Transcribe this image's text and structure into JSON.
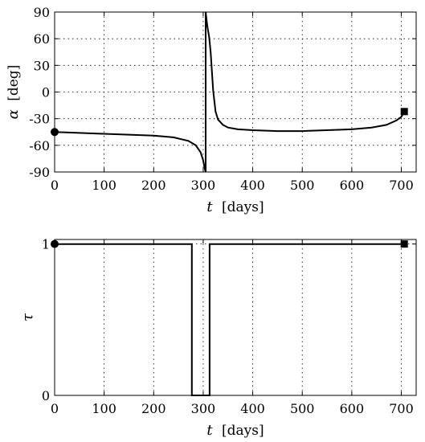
{
  "chart_data": [
    {
      "type": "line",
      "xlabel_var": "t",
      "xlabel_unit": "[days]",
      "ylabel_var": "α",
      "ylabel_unit": "[deg]",
      "xlim": [
        0,
        730
      ],
      "ylim": [
        -90,
        90
      ],
      "xticks": [
        "0",
        "100",
        "200",
        "300",
        "400",
        "500",
        "600",
        "700"
      ],
      "yticks": [
        "90",
        "60",
        "30",
        "0",
        "-30",
        "-60",
        "-90"
      ],
      "grid": true,
      "series": [
        {
          "x": [
            0,
            50,
            100,
            150,
            200,
            240,
            270,
            285,
            295,
            300,
            303,
            305,
            305,
            308,
            312,
            315,
            320,
            325,
            330,
            340,
            350,
            370,
            400,
            450,
            500,
            550,
            600,
            640,
            670,
            690,
            700,
            706
          ],
          "y": [
            -45,
            -46,
            -47,
            -48,
            -49,
            -51,
            -55,
            -60,
            -68,
            -77,
            -86,
            -90,
            90,
            75,
            62,
            45,
            2,
            -22,
            -31,
            -37,
            -40,
            -42,
            -43,
            -44,
            -44,
            -43,
            -42,
            -40,
            -37,
            -32,
            -28,
            -22
          ]
        }
      ],
      "start_marker": {
        "x": 0,
        "y": -45,
        "shape": "circle"
      },
      "end_marker": {
        "x": 706,
        "y": -22,
        "shape": "square"
      }
    },
    {
      "type": "line",
      "xlabel_var": "t",
      "xlabel_unit": "[days]",
      "ylabel_var": "τ",
      "xlim": [
        0,
        730
      ],
      "ylim": [
        0,
        1.03
      ],
      "xticks": [
        "0",
        "100",
        "200",
        "300",
        "400",
        "500",
        "600",
        "700"
      ],
      "yticks": [
        "1",
        "0"
      ],
      "grid": true,
      "series": [
        {
          "x": [
            0,
            277,
            277,
            313,
            313,
            706
          ],
          "y": [
            1,
            1,
            0,
            0,
            1,
            1
          ]
        }
      ],
      "start_marker": {
        "x": 0,
        "y": 1,
        "shape": "circle"
      },
      "end_marker": {
        "x": 706,
        "y": 1,
        "shape": "square"
      }
    }
  ]
}
